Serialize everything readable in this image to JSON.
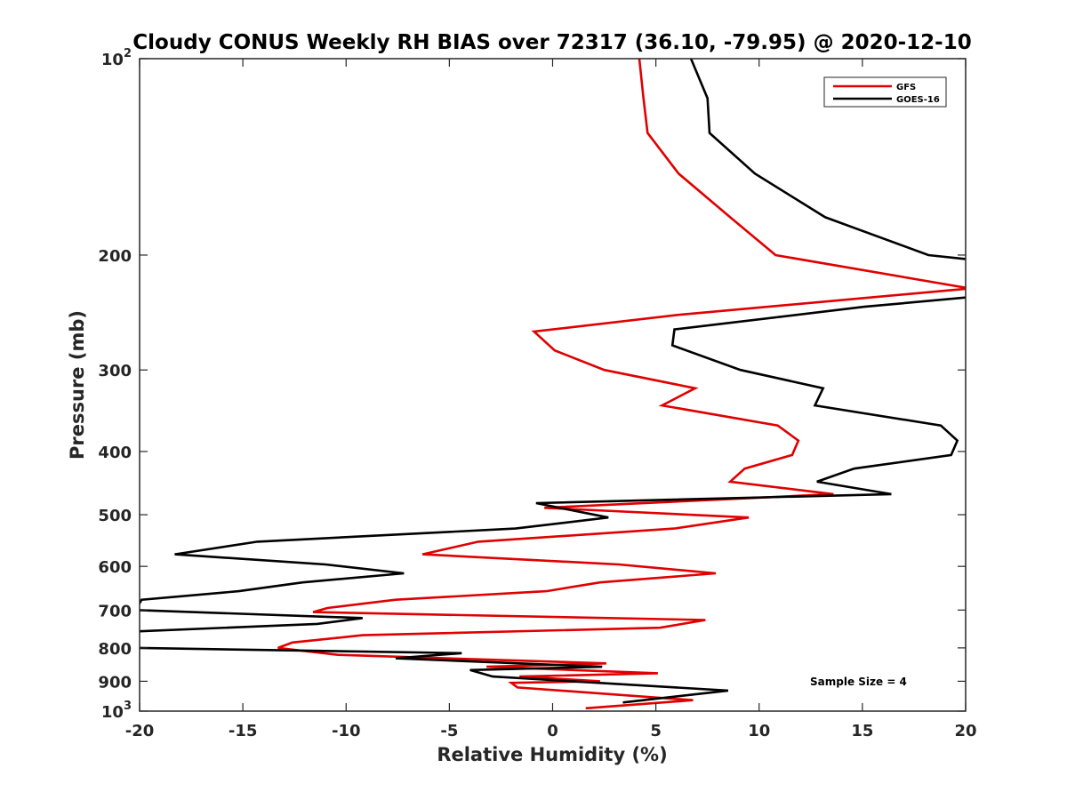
{
  "chart_data": {
    "type": "line",
    "title": "Cloudy CONUS Weekly RH BIAS over 72317 (36.10, -79.95) @ 2020-12-10",
    "xlabel": "Relative Humidity (%)",
    "ylabel": "Pressure (mb)",
    "xlim": [
      -20,
      20
    ],
    "ylim": [
      100,
      1000
    ],
    "y_scale": "log",
    "y_reversed": true,
    "grid": false,
    "legend_placement": "top-right",
    "x_ticks": [
      "-20",
      "-15",
      "-10",
      "-5",
      "0",
      "5",
      "10",
      "15",
      "20"
    ],
    "y_ticks": [
      {
        "value": 100,
        "base": "10",
        "exp": "2"
      },
      {
        "value": 200,
        "base": "200",
        "exp": ""
      },
      {
        "value": 300,
        "base": "300",
        "exp": ""
      },
      {
        "value": 400,
        "base": "400",
        "exp": ""
      },
      {
        "value": 500,
        "base": "500",
        "exp": ""
      },
      {
        "value": 600,
        "base": "600",
        "exp": ""
      },
      {
        "value": 700,
        "base": "700",
        "exp": ""
      },
      {
        "value": 800,
        "base": "800",
        "exp": ""
      },
      {
        "value": 900,
        "base": "900",
        "exp": ""
      },
      {
        "value": 1000,
        "base": "10",
        "exp": "3"
      }
    ],
    "annotation": "Sample Size = 4",
    "series": [
      {
        "name": "GFS",
        "color": "#e00000",
        "points": [
          [
            4.2,
            100
          ],
          [
            4.4,
            115
          ],
          [
            4.6,
            130
          ],
          [
            6.1,
            150
          ],
          [
            8.6,
            175
          ],
          [
            10.8,
            200
          ],
          [
            20.2,
            225
          ],
          [
            6.1,
            247
          ],
          [
            -0.9,
            262
          ],
          [
            0.1,
            280
          ],
          [
            2.5,
            300
          ],
          [
            6.9,
            320
          ],
          [
            5.3,
            340
          ],
          [
            10.9,
            365
          ],
          [
            11.9,
            385
          ],
          [
            11.6,
            405
          ],
          [
            9.3,
            425
          ],
          [
            8.6,
            445
          ],
          [
            13.6,
            465
          ],
          [
            -0.4,
            488
          ],
          [
            9.5,
            505
          ],
          [
            5.9,
            525
          ],
          [
            -3.6,
            550
          ],
          [
            -6.3,
            575
          ],
          [
            3.2,
            596
          ],
          [
            7.9,
            615
          ],
          [
            2.3,
            635
          ],
          [
            -0.3,
            655
          ],
          [
            -7.6,
            675
          ],
          [
            -10.9,
            695
          ],
          [
            -11.6,
            705
          ],
          [
            7.4,
            725
          ],
          [
            5.2,
            745
          ],
          [
            -9.2,
            765
          ],
          [
            -12.6,
            785
          ],
          [
            -13.3,
            800
          ],
          [
            -10.4,
            820
          ],
          [
            2.6,
            845
          ],
          [
            -3.2,
            855
          ],
          [
            5.1,
            875
          ],
          [
            -1.6,
            885
          ],
          [
            2.3,
            900
          ],
          [
            -2.0,
            905
          ],
          [
            -1.7,
            920
          ],
          [
            6.8,
            962
          ],
          [
            1.6,
            990
          ]
        ]
      },
      {
        "name": "GOES-16",
        "color": "#000000",
        "points": [
          [
            6.7,
            100
          ],
          [
            7.5,
            115
          ],
          [
            7.6,
            130
          ],
          [
            9.8,
            150
          ],
          [
            13.2,
            175
          ],
          [
            18.2,
            200
          ],
          [
            20.1,
            203
          ],
          [
            20.2,
            232
          ],
          [
            15.1,
            240
          ],
          [
            5.9,
            260
          ],
          [
            5.8,
            275
          ],
          [
            9.1,
            300
          ],
          [
            13.1,
            320
          ],
          [
            12.7,
            340
          ],
          [
            18.8,
            365
          ],
          [
            19.6,
            385
          ],
          [
            19.3,
            405
          ],
          [
            14.6,
            425
          ],
          [
            12.8,
            445
          ],
          [
            16.4,
            465
          ],
          [
            -0.8,
            480
          ],
          [
            2.7,
            505
          ],
          [
            -1.8,
            525
          ],
          [
            -14.3,
            550
          ],
          [
            -18.3,
            575
          ],
          [
            -11.0,
            596
          ],
          [
            -7.2,
            615
          ],
          [
            -12.1,
            635
          ],
          [
            -15.2,
            655
          ],
          [
            -19.9,
            675
          ],
          [
            -20.2,
            700
          ],
          [
            -9.2,
            720
          ],
          [
            -11.4,
            735
          ],
          [
            -20.2,
            755
          ],
          [
            -20.2,
            800
          ],
          [
            -4.4,
            815
          ],
          [
            -7.6,
            830
          ],
          [
            2.4,
            855
          ],
          [
            -4.0,
            865
          ],
          [
            -2.9,
            885
          ],
          [
            8.5,
            930
          ],
          [
            3.4,
            970
          ]
        ]
      }
    ]
  }
}
